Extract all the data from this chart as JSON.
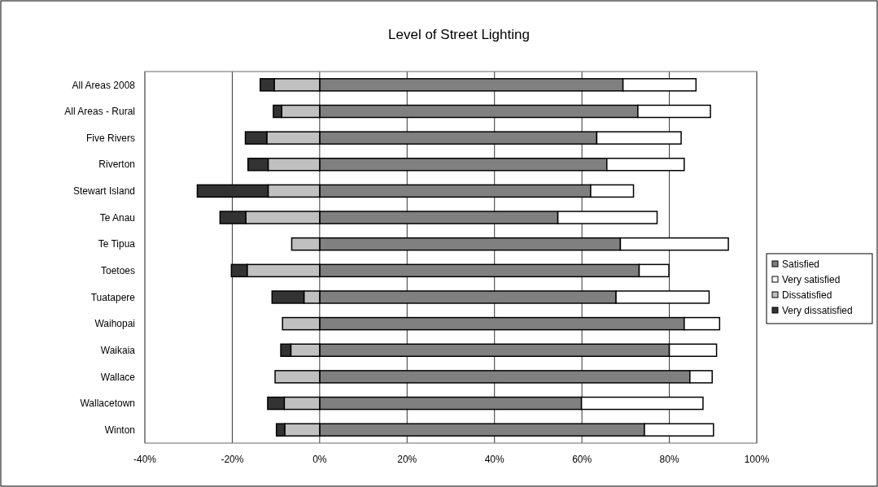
{
  "chart_data": {
    "type": "bar",
    "orientation": "horizontal",
    "stacked": true,
    "title": "Level of Street Lighting",
    "categories": [
      "All Areas 2008",
      "All Areas - Rural",
      "Five Rivers",
      "Riverton",
      "Stewart Island",
      "Te Anau",
      "Te Tipua",
      "Toetoes",
      "Tuatapere",
      "Waihopai",
      "Waikaia",
      "Wallace",
      "Wallacetown",
      "Winton"
    ],
    "series": [
      {
        "name": "Satisfied",
        "color": "#808080",
        "values": [
          69.4,
          72.8,
          63.4,
          65.7,
          62.0,
          54.5,
          68.8,
          73.1,
          67.8,
          83.4,
          80.0,
          84.7,
          59.9,
          74.3
        ]
      },
      {
        "name": "Very satisfied",
        "color": "#ffffff",
        "values": [
          16.7,
          16.6,
          19.3,
          17.7,
          9.8,
          22.7,
          24.7,
          6.8,
          21.3,
          8.1,
          10.8,
          5.1,
          27.8,
          15.8
        ]
      },
      {
        "name": "Dissatisfied",
        "color": "#c0c0c0",
        "values": [
          -10.4,
          -8.7,
          -12.1,
          -11.8,
          -11.8,
          -16.9,
          -6.4,
          -16.6,
          -3.6,
          -8.5,
          -6.6,
          -10.2,
          -8.1,
          -8.0
        ]
      },
      {
        "name": "Very dissatisfied",
        "color": "#333333",
        "values": [
          -3.2,
          -1.9,
          -4.9,
          -4.6,
          -16.2,
          -5.9,
          null,
          -3.6,
          -7.3,
          null,
          -2.3,
          null,
          -3.8,
          -1.9
        ]
      }
    ],
    "xlim": [
      -40,
      100
    ],
    "xticks": [
      {
        "value": -40,
        "label": "-40%"
      },
      {
        "value": -20,
        "label": "-20%"
      },
      {
        "value": 0,
        "label": "0%"
      },
      {
        "value": 20,
        "label": "20%"
      },
      {
        "value": 40,
        "label": "40%"
      },
      {
        "value": 60,
        "label": "60%"
      },
      {
        "value": 80,
        "label": "80%"
      },
      {
        "value": 100,
        "label": "100%"
      }
    ],
    "grid": "x",
    "legend": "right"
  }
}
